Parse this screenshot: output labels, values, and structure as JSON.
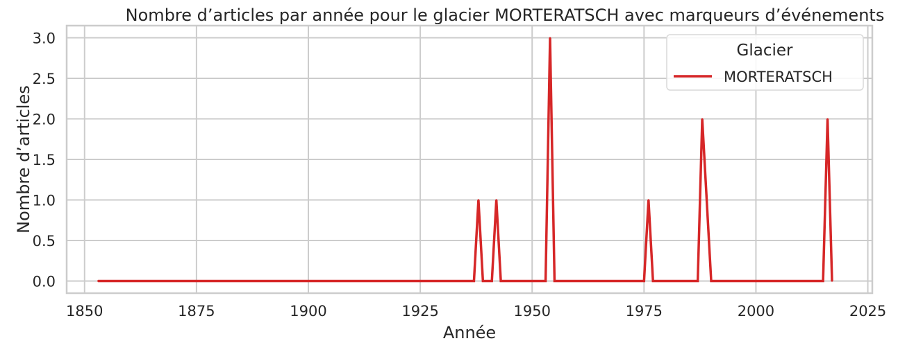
{
  "chart_data": {
    "type": "line",
    "title": "Nombre d’articles par année pour le glacier MORTERATSCH avec marqueurs d’événements",
    "xlabel": "Année",
    "ylabel": "Nombre d’articles",
    "xlim": [
      1846,
      2026
    ],
    "ylim": [
      -0.15,
      3.15
    ],
    "x_ticks": [
      1850,
      1875,
      1900,
      1925,
      1950,
      1975,
      2000,
      2025
    ],
    "y_ticks": [
      0.0,
      0.5,
      1.0,
      1.5,
      2.0,
      2.5,
      3.0
    ],
    "y_tick_labels": [
      "0.0",
      "0.5",
      "1.0",
      "1.5",
      "2.0",
      "2.5",
      "3.0"
    ],
    "grid": true,
    "legend": {
      "title": "Glacier",
      "placement": "top-right"
    },
    "series": [
      {
        "name": "MORTERATSCH",
        "color": "#d62728",
        "x": [
          1853,
          1937,
          1938,
          1939,
          1941,
          1942,
          1943,
          1953,
          1954,
          1955,
          1975,
          1976,
          1977,
          1987,
          1988,
          1990,
          2015,
          2016,
          2017
        ],
        "y": [
          0,
          0,
          1,
          0,
          0,
          1,
          0,
          0,
          3,
          0,
          0,
          1,
          0,
          0,
          2,
          0,
          0,
          2,
          0
        ]
      }
    ]
  }
}
